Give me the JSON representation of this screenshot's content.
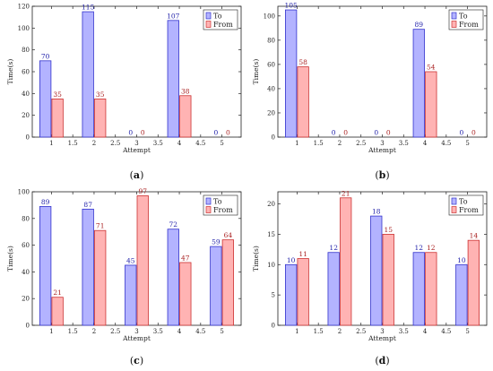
{
  "colors": {
    "to_fill": "#b3b3ff",
    "to_stroke": "#3333cc",
    "from_fill": "#ffb3b3",
    "from_stroke": "#cc3333",
    "to_label": "#2222aa",
    "from_label": "#aa2222"
  },
  "chart_data": [
    {
      "id": "a",
      "type": "bar",
      "caption_letter": "a",
      "xlabel": "Attempt",
      "ylabel": "Time(s)",
      "categories": [
        1,
        2,
        3,
        4,
        5
      ],
      "xticks": [
        "1",
        "1.5",
        "2",
        "2.5",
        "3",
        "3.5",
        "4",
        "4.5",
        "5"
      ],
      "ylim": [
        0,
        120
      ],
      "yticks": [
        0,
        20,
        40,
        60,
        80,
        100,
        120
      ],
      "legend_position": "top-right",
      "series": [
        {
          "name": "To",
          "values": [
            70,
            115,
            0,
            107,
            0
          ]
        },
        {
          "name": "From",
          "values": [
            35,
            35,
            0,
            38,
            0
          ]
        }
      ]
    },
    {
      "id": "b",
      "type": "bar",
      "caption_letter": "b",
      "xlabel": "Attempt",
      "ylabel": "Time(s)",
      "categories": [
        1,
        2,
        3,
        4,
        5
      ],
      "xticks": [
        "1",
        "1.5",
        "2",
        "2.5",
        "3",
        "3.5",
        "4",
        "4.5",
        "5"
      ],
      "ylim": [
        0,
        108
      ],
      "yticks": [
        0,
        20,
        40,
        60,
        80,
        100
      ],
      "legend_position": "top-right",
      "series": [
        {
          "name": "To",
          "values": [
            105,
            0,
            0,
            89,
            0
          ]
        },
        {
          "name": "From",
          "values": [
            58,
            0,
            0,
            54,
            0
          ]
        }
      ]
    },
    {
      "id": "c",
      "type": "bar",
      "caption_letter": "c",
      "xlabel": "Attempt",
      "ylabel": "Time(s)",
      "categories": [
        1,
        2,
        3,
        4,
        5
      ],
      "xticks": [
        "1",
        "1.5",
        "2",
        "2.5",
        "3",
        "3.5",
        "4",
        "4.5",
        "5"
      ],
      "ylim": [
        0,
        100
      ],
      "yticks": [
        0,
        20,
        40,
        60,
        80,
        100
      ],
      "legend_position": "top-right",
      "series": [
        {
          "name": "To",
          "values": [
            89,
            87,
            45,
            72,
            59
          ]
        },
        {
          "name": "From",
          "values": [
            21,
            71,
            97,
            47,
            64
          ]
        }
      ]
    },
    {
      "id": "d",
      "type": "bar",
      "caption_letter": "d",
      "xlabel": "Attempt",
      "ylabel": "Time(s)",
      "categories": [
        1,
        2,
        3,
        4,
        5
      ],
      "xticks": [
        "1",
        "1.5",
        "2",
        "2.5",
        "3",
        "3.5",
        "4",
        "4.5",
        "5"
      ],
      "ylim": [
        0,
        22
      ],
      "yticks": [
        0,
        5,
        10,
        15,
        20
      ],
      "legend_position": "top-right",
      "series": [
        {
          "name": "To",
          "values": [
            10,
            12,
            18,
            12,
            10
          ]
        },
        {
          "name": "From",
          "values": [
            11,
            21,
            15,
            12,
            14
          ]
        }
      ]
    }
  ]
}
